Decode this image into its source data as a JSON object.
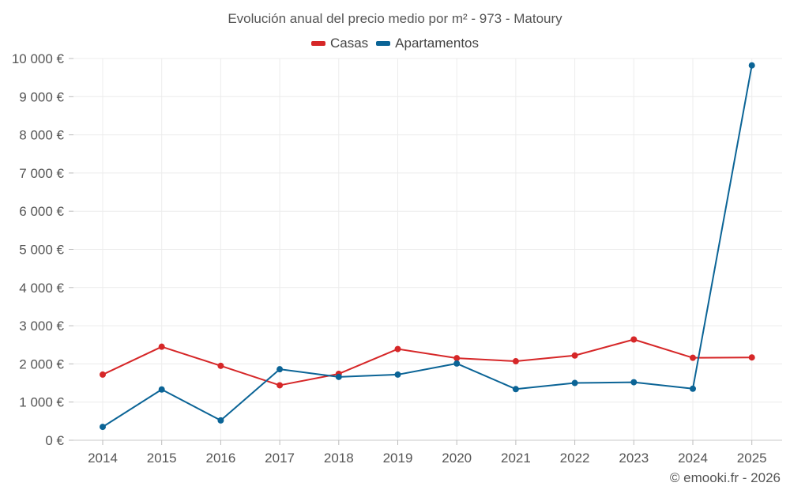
{
  "chart_data": {
    "type": "line",
    "title": "Evolución anual del precio medio por m² - 973 - Matoury",
    "categories": [
      "2014",
      "2015",
      "2016",
      "2017",
      "2018",
      "2019",
      "2020",
      "2021",
      "2022",
      "2023",
      "2024",
      "2025"
    ],
    "series": [
      {
        "name": "Casas",
        "color": "#d62728",
        "values": [
          1720,
          2450,
          1950,
          1440,
          1740,
          2390,
          2150,
          2070,
          2220,
          2640,
          2160,
          2170
        ]
      },
      {
        "name": "Apartamentos",
        "color": "#0b6496",
        "values": [
          350,
          1330,
          520,
          1860,
          1660,
          1720,
          2010,
          1340,
          1500,
          1520,
          1350,
          9820
        ]
      }
    ],
    "ylim": [
      0,
      10000
    ],
    "yticks": [
      0,
      1000,
      2000,
      3000,
      4000,
      5000,
      6000,
      7000,
      8000,
      9000,
      10000
    ],
    "ytick_labels": [
      "0 €",
      "1 000 €",
      "2 000 €",
      "3 000 €",
      "4 000 €",
      "5 000 €",
      "6 000 €",
      "7 000 €",
      "8 000 €",
      "9 000 €",
      "10 000 €"
    ],
    "grid": true,
    "legend_position": "top-center",
    "xlabel": "",
    "ylabel": ""
  },
  "footer": "© emooki.fr - 2026"
}
